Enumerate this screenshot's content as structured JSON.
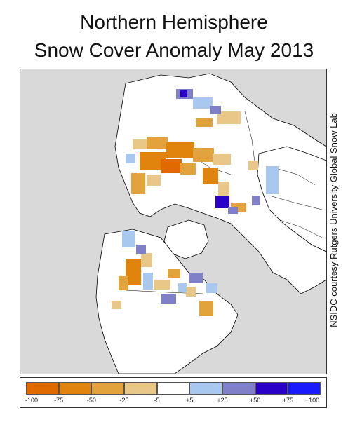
{
  "title": {
    "line1": "Northern Hemisphere",
    "line2": "Snow Cover Anomaly May 2013"
  },
  "credit": "NSIDC courtesy Rutgers University Global Snow Lab",
  "map": {
    "projection": "polar-stereographic",
    "ocean_color": "#d9d9d9",
    "land_color": "#ffffff",
    "coastline_color": "#000000"
  },
  "legend": {
    "bins": [
      {
        "color": "#e06a00"
      },
      {
        "color": "#e0840e"
      },
      {
        "color": "#e3a33c"
      },
      {
        "color": "#e8c789"
      },
      {
        "color": "#ffffff"
      },
      {
        "color": "#a9c8f0"
      },
      {
        "color": "#8080c8"
      },
      {
        "color": "#2a00c8"
      },
      {
        "color": "#1a1aff"
      }
    ],
    "tick_labels": [
      "-100",
      "-75",
      "-50",
      "-25",
      "-5",
      "+5",
      "+25",
      "+50",
      "+75",
      "+100"
    ]
  }
}
